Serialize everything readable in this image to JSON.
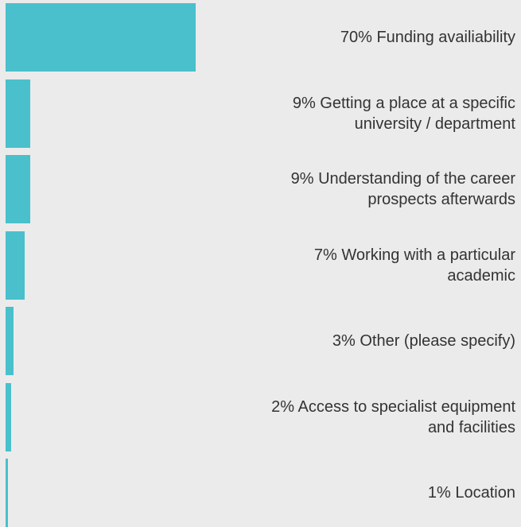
{
  "chart_data": {
    "type": "bar",
    "orientation": "horizontal",
    "color": "#49c0cc",
    "categories": [
      "Funding availiability",
      "Getting a place at a specific university / department",
      "Understanding of the career prospects afterwards",
      "Working with a particular academic",
      "Other (please specify)",
      "Access to specialist equipment and facilities",
      "Location"
    ],
    "values": [
      70,
      9,
      9,
      7,
      3,
      2,
      1
    ],
    "value_labels": [
      "70%",
      "9%",
      "9%",
      "7%",
      "3%",
      "2%",
      "1%"
    ]
  }
}
